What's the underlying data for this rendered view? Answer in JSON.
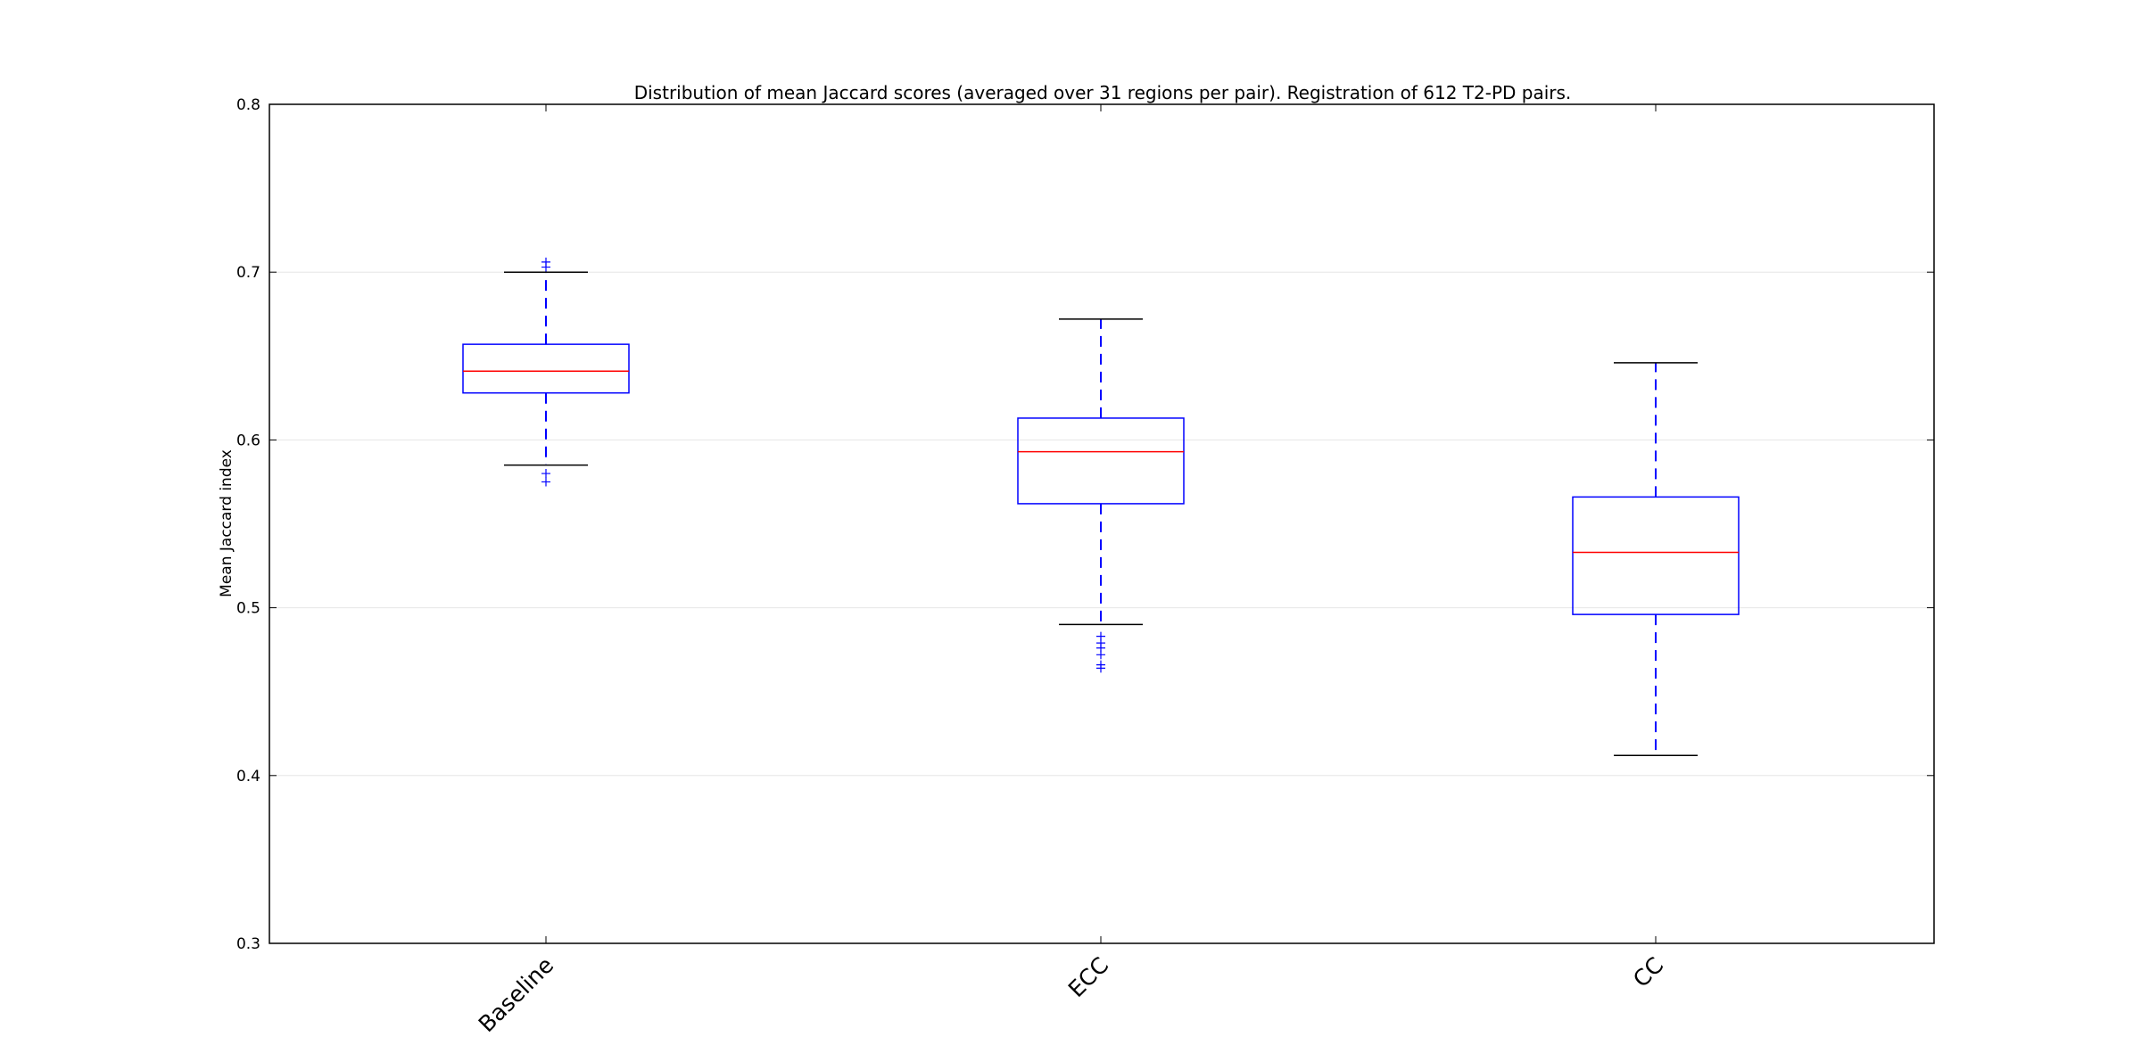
{
  "chart_data": {
    "type": "box",
    "title": "Distribution of mean Jaccard scores (averaged over 31 regions per pair). Registration of 612 T2-PD pairs.",
    "xlabel": "",
    "ylabel": "Mean Jaccard index",
    "ylim": [
      0.3,
      0.8
    ],
    "yticks": [
      "0.3",
      "0.4",
      "0.5",
      "0.6",
      "0.7",
      "0.8"
    ],
    "ytick_values": [
      0.3,
      0.4,
      0.5,
      0.6,
      0.7,
      0.8
    ],
    "grid": true,
    "categories": [
      "Baseline",
      "ECC",
      "CC"
    ],
    "boxes": [
      {
        "name": "Baseline",
        "whisker_low": 0.585,
        "q1": 0.628,
        "median": 0.641,
        "q3": 0.657,
        "whisker_high": 0.7,
        "outliers": [
          0.575,
          0.58,
          0.703,
          0.706
        ]
      },
      {
        "name": "ECC",
        "whisker_low": 0.49,
        "q1": 0.562,
        "median": 0.593,
        "q3": 0.613,
        "whisker_high": 0.672,
        "outliers": [
          0.464,
          0.466,
          0.472,
          0.476,
          0.479,
          0.483
        ]
      },
      {
        "name": "CC",
        "whisker_low": 0.412,
        "q1": 0.496,
        "median": 0.533,
        "q3": 0.566,
        "whisker_high": 0.646,
        "outliers": []
      }
    ],
    "colors": {
      "box": "#0000ff",
      "median": "#ff0000",
      "whisker": "#0000ff",
      "cap": "#000000",
      "outlier": "#0000ff",
      "grid": "#e6e6e6",
      "axes": "#000000"
    }
  }
}
